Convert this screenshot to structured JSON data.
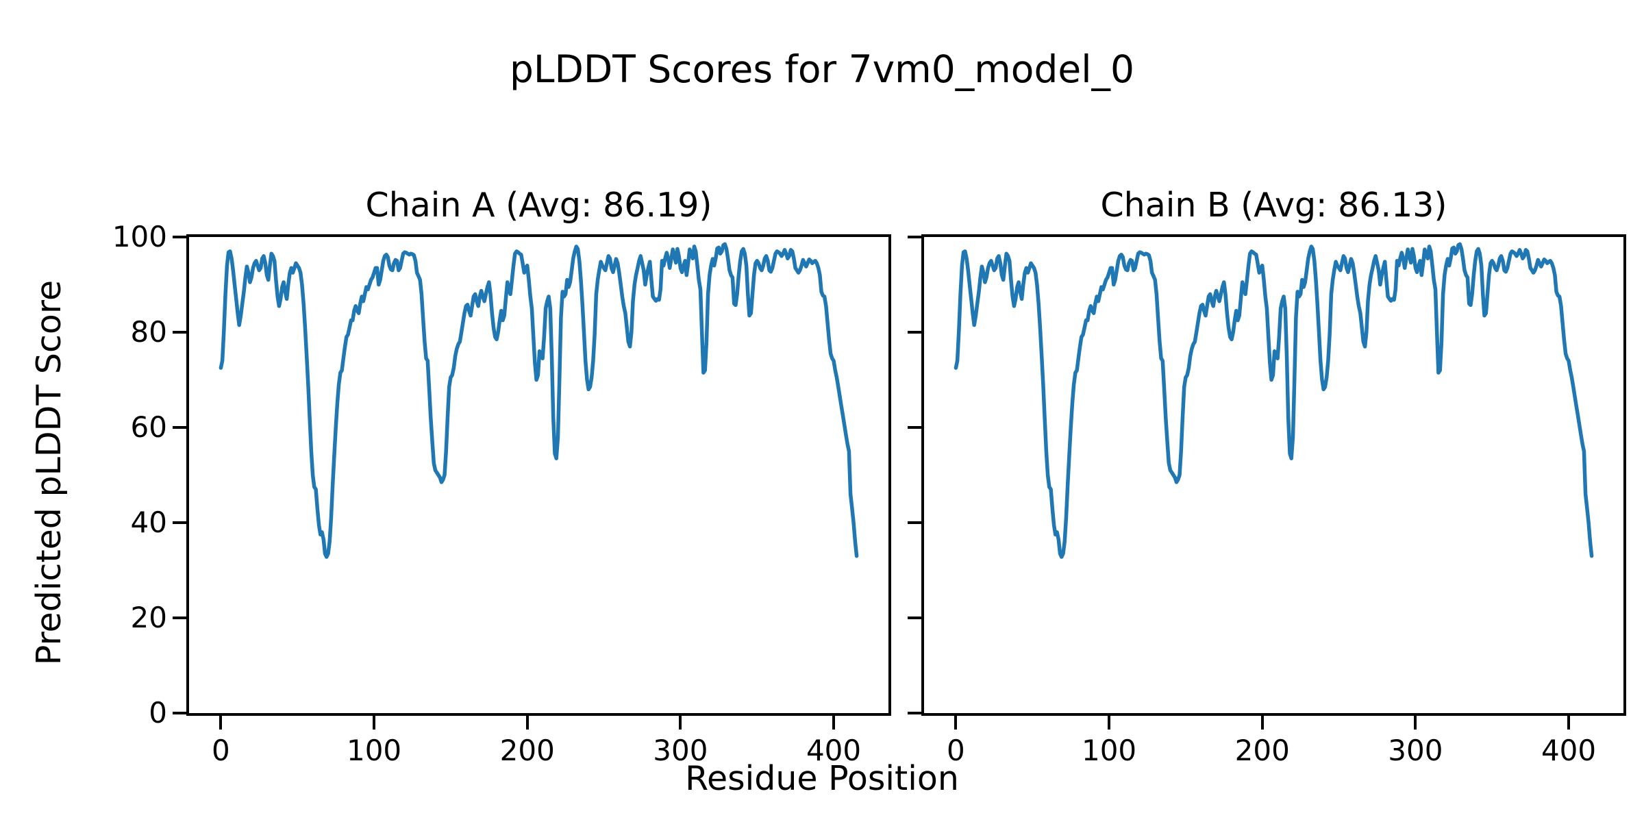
{
  "figure": {
    "suptitle": "pLDDT Scores for 7vm0_model_0",
    "xlabel": "Residue Position",
    "ylabel": "Predicted pLDDT Score"
  },
  "chart_data": {
    "type": "line",
    "title": "pLDDT Scores for 7vm0_model_0",
    "xlabel": "Residue Position",
    "ylabel": "Predicted pLDDT Score",
    "line_color": "#1f77b4",
    "background_color": "#ffffff",
    "grid": false,
    "legend": "none",
    "xlim": [
      -20.75,
      435.75
    ],
    "ylim": [
      0,
      100
    ],
    "x_ticks": [
      0,
      100,
      200,
      300,
      400
    ],
    "x_tick_labels": [
      "0",
      "100",
      "200",
      "300",
      "400"
    ],
    "y_ticks": [
      0,
      20,
      40,
      60,
      80,
      100
    ],
    "y_tick_labels": [
      "0",
      "20",
      "40",
      "60",
      "80",
      "100"
    ],
    "x_start": 0,
    "x_step": 1,
    "subplots": [
      {
        "title": "Chain A (Avg: 86.19)",
        "series_name": "Chain A",
        "avg": 86.19,
        "values": [
          72.5,
          74,
          80.5,
          88,
          94,
          96.8,
          97,
          95.5,
          93,
          90,
          87,
          84,
          81.5,
          83.5,
          86,
          88.5,
          91.5,
          93.8,
          92.5,
          90.5,
          91.5,
          93.5,
          94.5,
          95,
          94,
          93,
          93.5,
          95.5,
          96,
          94.5,
          92,
          91,
          94,
          96.5,
          96,
          95,
          91,
          87.5,
          85.5,
          87,
          89.5,
          90.5,
          88.5,
          87,
          90,
          92.5,
          93.5,
          92.5,
          93.5,
          94.5,
          94,
          93.5,
          92.5,
          90,
          86,
          81,
          75,
          69,
          62,
          55,
          50,
          47.5,
          47,
          43,
          39.5,
          37.5,
          38,
          36.5,
          33.5,
          32.8,
          33.5,
          36,
          41,
          48,
          54,
          60,
          65,
          69,
          71.5,
          72,
          74.5,
          77,
          79,
          79.5,
          81,
          82.5,
          82.5,
          84.5,
          85.5,
          84.5,
          84,
          86,
          87.5,
          86.5,
          88,
          89.5,
          89,
          90,
          91,
          91.5,
          92.5,
          93.5,
          93.5,
          90,
          91,
          93,
          95,
          96,
          96.3,
          95.8,
          94,
          93.2,
          93,
          94.5,
          95.2,
          95,
          93,
          93.5,
          95,
          96.5,
          96.8,
          96.7,
          96.5,
          96.3,
          96.5,
          96.4,
          96.2,
          95,
          92.5,
          91.8,
          91,
          88,
          83,
          78,
          74.5,
          74,
          68,
          62,
          57,
          52.5,
          51,
          50.5,
          50,
          49.5,
          48.5,
          49,
          50,
          55,
          62,
          68.5,
          70.5,
          71,
          72.5,
          75,
          76.5,
          77.5,
          78,
          80,
          82,
          84,
          85.5,
          85.8,
          84.5,
          83.5,
          85.5,
          87.5,
          88,
          86.5,
          85.5,
          87.5,
          88.7,
          87.5,
          86.5,
          88,
          89.5,
          90.5,
          88,
          84,
          81,
          79,
          78.5,
          80,
          82.5,
          84.5,
          82.5,
          83.5,
          87,
          90.5,
          89,
          88,
          91,
          94,
          96.5,
          97,
          96.8,
          96.5,
          96.3,
          94.5,
          92.5,
          93.5,
          94,
          91,
          87.5,
          85,
          79,
          73.5,
          70,
          71,
          76,
          75.5,
          74.5,
          79,
          85,
          86.5,
          87.5,
          85,
          75,
          62,
          54.5,
          53.5,
          58,
          70,
          83,
          88.5,
          87.5,
          88,
          91,
          89.5,
          90.5,
          93,
          95.5,
          97,
          98,
          97.5,
          95,
          91,
          86,
          80,
          74,
          70,
          68,
          68.5,
          70.5,
          74,
          79.5,
          88,
          91,
          93,
          94.8,
          94,
          93.5,
          93,
          94.5,
          96,
          95.5,
          93.5,
          92.6,
          94,
          95.4,
          94.5,
          92.5,
          90,
          87.5,
          85.5,
          84,
          81,
          78,
          77,
          80,
          86.5,
          90,
          92,
          93.5,
          95,
          96,
          94.5,
          93,
          90,
          92,
          93.5,
          94.8,
          91,
          87.5,
          87,
          86.6,
          87,
          86.8,
          89,
          95,
          94,
          95.5,
          96.7,
          95.5,
          93.5,
          95.5,
          97.4,
          96,
          94.6,
          97.5,
          96,
          93.5,
          92.6,
          94,
          95,
          92,
          94.5,
          97.4,
          96.5,
          95.5,
          98,
          97,
          94,
          91,
          89,
          80,
          71.5,
          72,
          78,
          88,
          92,
          94,
          95.4,
          94,
          95.5,
          97.6,
          97.8,
          96.5,
          97,
          98.3,
          98.5,
          97.5,
          95.5,
          93,
          92,
          91.5,
          86,
          85.7,
          88,
          92,
          95,
          97,
          97.5,
          96.5,
          94,
          88,
          83.5,
          84,
          88,
          92,
          94.5,
          95,
          94.5,
          93.5,
          93,
          94,
          95.5,
          96,
          95,
          93,
          92.7,
          93.5,
          95,
          96.5,
          97,
          96.8,
          96.5,
          96,
          96.5,
          97.3,
          96.5,
          95.5,
          96,
          97.3,
          97,
          95.5,
          93.5,
          93,
          92.5,
          93,
          94,
          95.2,
          94.5,
          93.8,
          94.5,
          95.3,
          95,
          94.5,
          94.8,
          95,
          94.5,
          93.5,
          92,
          88.5,
          87.7,
          87.5,
          85.5,
          82,
          78.5,
          75.5,
          74.5,
          74,
          72,
          70.5,
          68.5,
          66.5,
          64.5,
          62.5,
          60.5,
          58.5,
          56.5,
          55,
          46,
          43,
          40,
          36,
          33
        ]
      },
      {
        "title": "Chain B (Avg: 86.13)",
        "series_name": "Chain B",
        "avg": 86.13,
        "values": [
          72.5,
          74,
          80.5,
          88,
          94,
          96.8,
          97,
          95.5,
          93,
          90,
          87,
          84,
          81.5,
          83.5,
          86,
          88.5,
          91.5,
          93.8,
          92.5,
          90.5,
          91.5,
          93.5,
          94.5,
          95,
          94,
          93,
          93.5,
          95.5,
          96,
          94.5,
          92,
          91,
          94,
          96.5,
          96,
          95,
          91,
          87.5,
          85.5,
          87,
          89.5,
          90.5,
          88.5,
          87,
          90,
          92.5,
          93.5,
          92.5,
          93.5,
          94.5,
          94,
          93.5,
          92.5,
          90,
          86,
          81,
          75,
          69,
          62,
          55,
          50,
          47.5,
          47,
          43,
          39.5,
          37.5,
          38,
          36.5,
          33.5,
          32.8,
          33.5,
          36,
          41,
          48,
          54,
          60,
          65,
          69,
          71.5,
          72,
          74.5,
          77,
          79,
          79.5,
          81,
          82.5,
          82.5,
          84.5,
          85.5,
          84.5,
          84,
          86,
          87.5,
          86.5,
          88,
          89.5,
          89,
          90,
          91,
          91.5,
          92.5,
          93.5,
          93.5,
          90,
          91,
          93,
          95,
          96,
          96.3,
          95.8,
          94,
          93.2,
          93,
          94.5,
          95.2,
          95,
          93,
          93.5,
          95,
          96.5,
          96.8,
          96.7,
          96.5,
          96.3,
          96.5,
          96.4,
          96.2,
          95,
          92.5,
          91.8,
          91,
          88,
          83,
          78,
          74.5,
          74,
          68,
          62,
          57,
          52.5,
          51,
          50.5,
          50,
          49.5,
          48.5,
          49,
          50,
          55,
          62,
          68.5,
          70.5,
          71,
          72.5,
          75,
          76.5,
          77.5,
          78,
          80,
          82,
          84,
          85.5,
          85.8,
          84.5,
          83.5,
          85.5,
          87.5,
          88,
          86.5,
          85.5,
          87.5,
          88.7,
          87.5,
          86.5,
          88,
          89.5,
          90.5,
          88,
          84,
          81,
          79,
          78.5,
          80,
          82.5,
          84.5,
          82.5,
          83.5,
          87,
          90.5,
          89,
          88,
          91,
          94,
          96.5,
          97,
          96.8,
          96.5,
          96.3,
          94.5,
          92.5,
          93.5,
          94,
          91,
          87.5,
          85,
          79,
          73.5,
          70,
          71,
          76,
          75.5,
          74.5,
          79,
          85,
          86.5,
          87.5,
          85,
          75,
          62,
          54.5,
          53.5,
          58,
          70,
          83,
          88.5,
          87.5,
          88,
          91,
          89.5,
          90.5,
          93,
          95.5,
          97,
          98,
          97.5,
          95,
          91,
          86,
          80,
          74,
          70,
          68,
          68.5,
          70.5,
          74,
          79.5,
          88,
          91,
          93,
          94.8,
          94,
          93.5,
          93,
          94.5,
          96,
          95.5,
          93.5,
          92.6,
          94,
          95.4,
          94.5,
          92.5,
          90,
          87.5,
          85.5,
          84,
          81,
          78,
          77,
          80,
          86.5,
          90,
          92,
          93.5,
          95,
          96,
          94.5,
          93,
          90,
          92,
          93.5,
          94.8,
          91,
          87.5,
          87,
          86.6,
          87,
          86.8,
          89,
          95,
          94,
          95.5,
          96.7,
          95.5,
          93.5,
          95.5,
          97.4,
          96,
          94.6,
          97.5,
          96,
          93.5,
          92.6,
          94,
          95,
          92,
          94.5,
          97.4,
          96.5,
          95.5,
          98,
          97,
          94,
          91,
          89,
          80,
          71.5,
          72,
          78,
          88,
          92,
          94,
          95.4,
          94,
          95.5,
          97.6,
          97.8,
          96.5,
          97,
          98.3,
          98.5,
          97.5,
          95.5,
          93,
          92,
          91.5,
          86,
          85.7,
          88,
          92,
          95,
          97,
          97.5,
          96.5,
          94,
          88,
          83.5,
          84,
          88,
          92,
          94.5,
          95,
          94.5,
          93.5,
          93,
          94,
          95.5,
          96,
          95,
          93,
          92.7,
          93.5,
          95,
          96.5,
          97,
          96.8,
          96.5,
          96,
          96.5,
          97.3,
          96.5,
          95.5,
          96,
          97.3,
          97,
          95.5,
          93.5,
          93,
          92.5,
          93,
          94,
          95.2,
          94.5,
          93.8,
          94.5,
          95.3,
          95,
          94.5,
          94.8,
          95,
          94.5,
          93.5,
          92,
          88.5,
          87.7,
          87.5,
          85.5,
          82,
          78.5,
          75.5,
          74.5,
          74,
          72,
          70.5,
          68.5,
          66.5,
          64.5,
          62.5,
          60.5,
          58.5,
          56.5,
          55,
          46,
          43,
          40,
          36,
          33
        ]
      }
    ]
  }
}
